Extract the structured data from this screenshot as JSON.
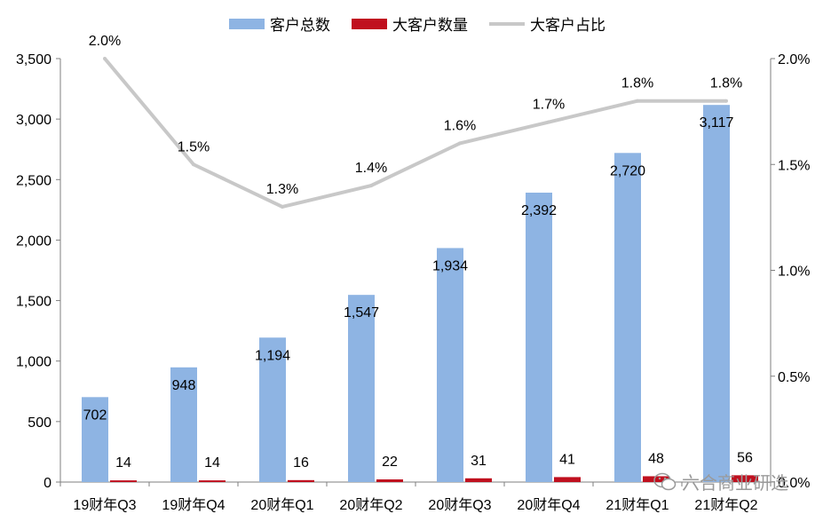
{
  "chart_data": {
    "type": "bar",
    "categories": [
      "19财年Q3",
      "19财年Q4",
      "20财年Q1",
      "20财年Q2",
      "20财年Q3",
      "20财年Q4",
      "21财年Q1",
      "21财年Q2"
    ],
    "series": [
      {
        "name": "客户总数",
        "type": "bar",
        "axis": "left",
        "color": "#8EB4E3",
        "values": [
          702,
          948,
          1194,
          1547,
          1934,
          2392,
          2720,
          3117
        ],
        "labels": [
          "702",
          "948",
          "1,194",
          "1,547",
          "1,934",
          "2,392",
          "2,720",
          "3,117"
        ]
      },
      {
        "name": "大客户数量",
        "type": "bar",
        "axis": "left",
        "color": "#C0101F",
        "values": [
          14,
          14,
          16,
          22,
          31,
          41,
          48,
          56
        ],
        "labels": [
          "14",
          "14",
          "16",
          "22",
          "31",
          "41",
          "48",
          "56"
        ]
      },
      {
        "name": "大客户占比",
        "type": "line",
        "axis": "right",
        "color": "#C8C8C8",
        "values": [
          2.0,
          1.5,
          1.3,
          1.4,
          1.6,
          1.7,
          1.8,
          1.8
        ],
        "labels": [
          "2.0%",
          "1.5%",
          "1.3%",
          "1.4%",
          "1.6%",
          "1.7%",
          "1.8%",
          "1.8%"
        ]
      }
    ],
    "y_left": {
      "min": 0,
      "max": 3500,
      "ticks": [
        0,
        500,
        1000,
        1500,
        2000,
        2500,
        3000,
        3500
      ],
      "tick_labels": [
        "0",
        "500",
        "1,000",
        "1,500",
        "2,000",
        "2,500",
        "3,000",
        "3,500"
      ]
    },
    "y_right": {
      "min": 0,
      "max": 2.0,
      "ticks": [
        0,
        0.5,
        1.0,
        1.5,
        2.0
      ],
      "tick_labels": [
        "0.0%",
        "0.5%",
        "1.0%",
        "1.5%",
        "2.0%"
      ]
    },
    "legend_position": "top-center",
    "grid": false
  },
  "watermark": {
    "text": "六合商业研选",
    "icon": "wechat-icon"
  }
}
